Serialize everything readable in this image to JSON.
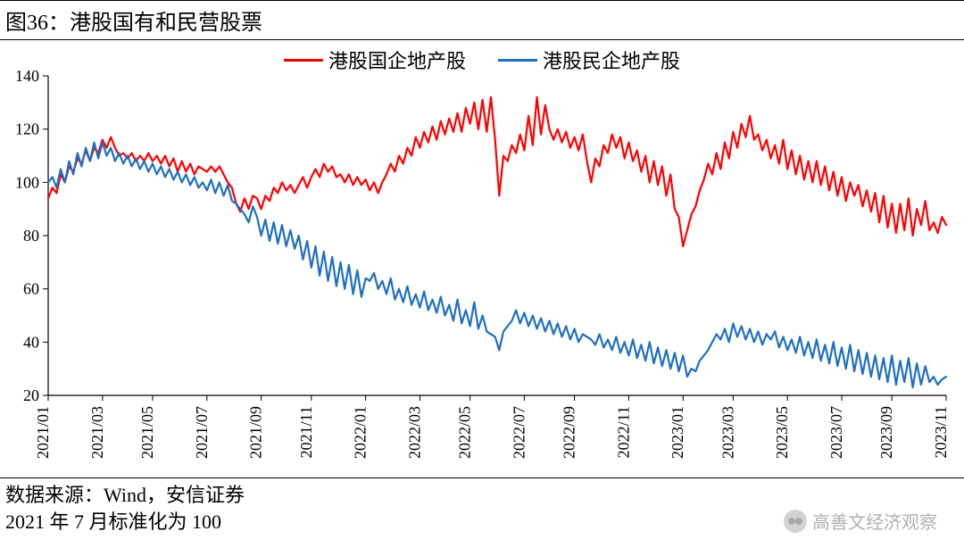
{
  "title": "图36：港股国有和民营股票",
  "footer_line1": "数据来源：Wind，安信证券",
  "footer_line2": "2021 年 7 月标准化为 100",
  "watermark_text": "高善文经济观察",
  "chart": {
    "type": "line",
    "background_color": "#ffffff",
    "axis_color": "#000000",
    "tick_font_size": 18,
    "ylim": [
      20,
      140
    ],
    "ytick_step": 20,
    "yticks": [
      20,
      40,
      60,
      80,
      100,
      120,
      140
    ],
    "x_categories": [
      "2021/01",
      "2021/03",
      "2021/05",
      "2021/07",
      "2021/09",
      "2021/11",
      "2022/01",
      "2022/03",
      "2022/05",
      "2022/07",
      "2022/09",
      "2022/11",
      "2023/01",
      "2023/03",
      "2023/05",
      "2023/07",
      "2023/09",
      "2023/11"
    ],
    "x_label_rotation": -90,
    "legend_position": "top-center",
    "line_width": 2.2,
    "series": [
      {
        "name": "港股国企地产股",
        "color": "#ff0000",
        "data": [
          94,
          98,
          96,
          103,
          100,
          106,
          104,
          109,
          107,
          112,
          108,
          113,
          111,
          116,
          113,
          117,
          113,
          110,
          111,
          109,
          111,
          108,
          110,
          108,
          111,
          108,
          110,
          107,
          110,
          106,
          109,
          104,
          108,
          104,
          107,
          103,
          106,
          105,
          104,
          106,
          104,
          106,
          103,
          100,
          98,
          92,
          89,
          94,
          90,
          95,
          94,
          90,
          95,
          93,
          98,
          96,
          100,
          97,
          99,
          96,
          99,
          102,
          98,
          102,
          105,
          102,
          107,
          104,
          106,
          102,
          103,
          100,
          103,
          99,
          102,
          99,
          101,
          97,
          100,
          96,
          100,
          103,
          107,
          104,
          110,
          107,
          113,
          110,
          117,
          113,
          119,
          115,
          121,
          116,
          123,
          118,
          124,
          119,
          126,
          119,
          128,
          122,
          130,
          120,
          131,
          119,
          132,
          116,
          95,
          110,
          108,
          114,
          111,
          118,
          112,
          125,
          114,
          132,
          118,
          129,
          120,
          116,
          120,
          115,
          119,
          113,
          117,
          112,
          118,
          108,
          100,
          109,
          106,
          114,
          111,
          118,
          113,
          117,
          109,
          115,
          108,
          112,
          104,
          110,
          100,
          108,
          99,
          106,
          95,
          103,
          90,
          87,
          76,
          82,
          88,
          91,
          97,
          101,
          107,
          103,
          111,
          105,
          115,
          109,
          119,
          113,
          122,
          117,
          125,
          116,
          118,
          112,
          116,
          109,
          114,
          107,
          116,
          105,
          112,
          103,
          110,
          101,
          108,
          100,
          108,
          99,
          106,
          97,
          104,
          95,
          102,
          93,
          100,
          95,
          99,
          91,
          97,
          89,
          96,
          85,
          95,
          83,
          92,
          81,
          92,
          82,
          94,
          80,
          90,
          84,
          93,
          82,
          85,
          81,
          87,
          84
        ]
      },
      {
        "name": "港股民企地产股",
        "color": "#1f6fc1",
        "data": [
          100,
          102,
          98,
          105,
          100,
          108,
          103,
          111,
          106,
          113,
          108,
          115,
          109,
          115,
          110,
          113,
          108,
          111,
          107,
          110,
          106,
          109,
          105,
          108,
          104,
          107,
          103,
          106,
          102,
          105,
          101,
          104,
          100,
          103,
          99,
          102,
          98,
          100,
          97,
          101,
          96,
          100,
          95,
          99,
          93,
          92,
          90,
          88,
          85,
          91,
          87,
          80,
          86,
          78,
          85,
          77,
          84,
          76,
          82,
          75,
          80,
          71,
          78,
          68,
          76,
          65,
          74,
          63,
          72,
          61,
          70,
          60,
          69,
          58,
          67,
          57,
          64,
          63,
          66,
          60,
          63,
          58,
          64,
          56,
          60,
          55,
          61,
          54,
          58,
          53,
          59,
          52,
          56,
          51,
          57,
          50,
          54,
          48,
          56,
          47,
          52,
          46,
          55,
          45,
          50,
          44,
          43,
          42,
          37,
          44,
          46,
          48,
          52,
          47,
          51,
          46,
          50,
          45,
          49,
          44,
          48,
          43,
          47,
          42,
          46,
          41,
          45,
          40,
          43,
          42,
          41,
          39,
          43,
          38,
          41,
          37,
          42,
          36,
          40,
          35,
          41,
          34,
          39,
          33,
          40,
          32,
          38,
          31,
          37,
          30,
          36,
          29,
          35,
          27,
          30,
          29,
          33,
          35,
          37,
          40,
          43,
          41,
          45,
          40,
          47,
          42,
          46,
          41,
          45,
          40,
          44,
          39,
          43,
          41,
          44,
          38,
          42,
          37,
          41,
          36,
          42,
          35,
          40,
          34,
          41,
          33,
          39,
          32,
          40,
          31,
          38,
          30,
          39,
          29,
          37,
          28,
          36,
          27,
          35,
          26,
          34,
          25,
          35,
          24,
          33,
          25,
          34,
          23,
          32,
          24,
          31,
          25,
          27,
          24,
          26,
          27
        ]
      }
    ]
  }
}
